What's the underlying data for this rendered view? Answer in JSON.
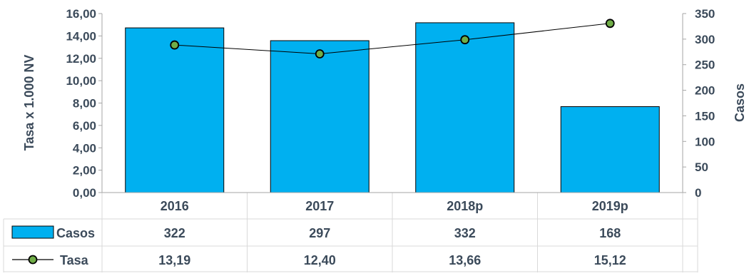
{
  "chart_data": {
    "type": "bar",
    "categories": [
      "2016",
      "2017",
      "2018p",
      "2019p"
    ],
    "series": [
      {
        "name": "Casos",
        "kind": "bar",
        "axis": "right",
        "values": [
          322,
          297,
          332,
          168
        ],
        "color": "#00b0f0",
        "labels": [
          "322",
          "297",
          "332",
          "168"
        ]
      },
      {
        "name": "Tasa",
        "kind": "line",
        "axis": "left",
        "values": [
          13.19,
          12.4,
          13.66,
          15.12
        ],
        "color": "#000000",
        "marker_color": "#70ad47",
        "labels": [
          "13,19",
          "12,40",
          "13,66",
          "15,12"
        ]
      }
    ],
    "ylabel": "Tasa x 1.000 NV",
    "y2label": "Casos",
    "ylim": [
      0,
      16
    ],
    "y2lim": [
      0,
      350
    ],
    "yticks": [
      "0,00",
      "2,00",
      "4,00",
      "6,00",
      "8,00",
      "10,00",
      "12,00",
      "14,00",
      "16,00"
    ],
    "y2ticks": [
      "0",
      "50",
      "100",
      "150",
      "200",
      "250",
      "300",
      "350"
    ],
    "legend": "data-table"
  }
}
